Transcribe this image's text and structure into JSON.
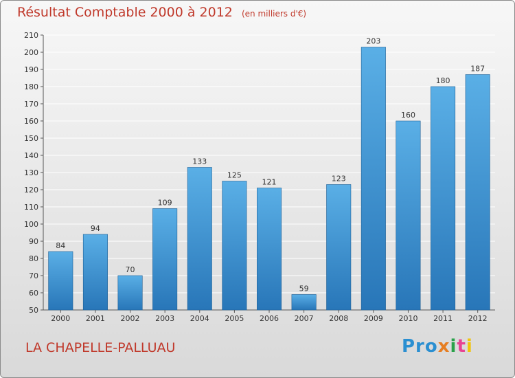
{
  "chart_data": {
    "type": "bar",
    "title": "Résultat Comptable 2000 à 2012",
    "unit_note": "(en milliers d'€)",
    "categories": [
      "2000",
      "2001",
      "2002",
      "2003",
      "2004",
      "2005",
      "2006",
      "2007",
      "2008",
      "2009",
      "2010",
      "2011",
      "2012"
    ],
    "values": [
      84,
      94,
      70,
      109,
      133,
      125,
      121,
      59,
      123,
      203,
      160,
      180,
      187
    ],
    "ylim": [
      50,
      210
    ],
    "yticks": [
      50,
      60,
      70,
      80,
      90,
      100,
      110,
      120,
      130,
      140,
      150,
      160,
      170,
      180,
      190,
      200,
      210
    ],
    "xlabel": "",
    "ylabel": "",
    "grid": true,
    "colors": {
      "bar_top": "#5aafe6",
      "bar_bottom": "#2876b8",
      "title": "#c0392b",
      "grid": "#ffffff"
    }
  },
  "footer": {
    "commune": "LA CHAPELLE-PALLUAU",
    "logo": {
      "p1": "Pro",
      "p2": "x",
      "p3": "i",
      "p4": "t",
      "p5": "i"
    }
  }
}
